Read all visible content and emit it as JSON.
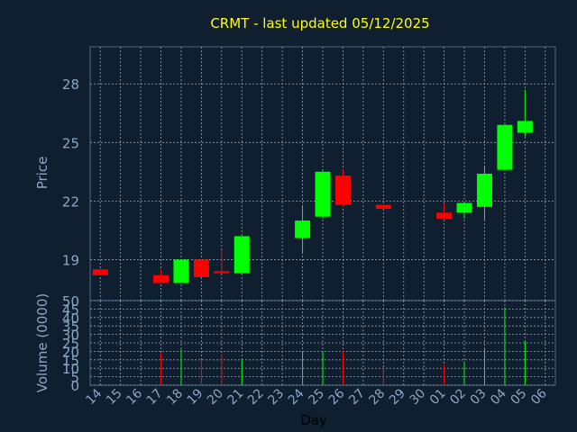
{
  "chart_data": {
    "type": "candlestick",
    "title": "CRMT - last updated 05/12/2025",
    "xlabel": "Day",
    "ylabel_price": "Price",
    "ylabel_volume": "Volume (0000)",
    "price_ticks": [
      "19",
      "22",
      "25",
      "28"
    ],
    "volume_ticks": [
      "0",
      "5",
      "10",
      "15",
      "20",
      "25",
      "30",
      "35",
      "40",
      "45",
      "50"
    ],
    "x_ticks": [
      "14",
      "15",
      "16",
      "17",
      "18",
      "19",
      "20",
      "21",
      "22",
      "23",
      "24",
      "25",
      "26",
      "27",
      "28",
      "29",
      "30",
      "01",
      "02",
      "03",
      "04",
      "05",
      "06"
    ],
    "price_range": [
      16.9,
      29.9
    ],
    "volume_range": [
      0,
      50
    ],
    "candles": [
      {
        "day": "14",
        "open": 18.5,
        "high": 18.5,
        "low": 18.2,
        "close": 18.2,
        "volume": 0
      },
      {
        "day": "17",
        "open": 18.2,
        "high": 18.5,
        "low": 17.8,
        "close": 17.8,
        "volume": 19
      },
      {
        "day": "18",
        "open": 17.8,
        "high": 19.0,
        "low": 17.8,
        "close": 19.0,
        "volume": 21
      },
      {
        "day": "19",
        "open": 19.0,
        "high": 19.0,
        "low": 18.1,
        "close": 18.1,
        "volume": 15
      },
      {
        "day": "20",
        "open": 18.4,
        "high": 19.5,
        "low": 18.3,
        "close": 18.3,
        "volume": 18
      },
      {
        "day": "21",
        "open": 18.3,
        "high": 20.2,
        "low": 18.3,
        "close": 20.2,
        "volume": 15
      },
      {
        "day": "24",
        "open": 20.1,
        "high": 21.8,
        "low": 19.3,
        "close": 21.0,
        "volume": 20
      },
      {
        "day": "25",
        "open": 21.2,
        "high": 23.6,
        "low": 21.1,
        "close": 23.5,
        "volume": 20
      },
      {
        "day": "26",
        "open": 23.3,
        "high": 23.6,
        "low": 21.7,
        "close": 21.8,
        "volume": 20
      },
      {
        "day": "28",
        "open": 21.8,
        "high": 21.8,
        "low": 21.6,
        "close": 21.6,
        "volume": 10
      },
      {
        "day": "01",
        "open": 21.4,
        "high": 21.9,
        "low": 21.1,
        "close": 21.1,
        "volume": 12
      },
      {
        "day": "02",
        "open": 21.4,
        "high": 21.9,
        "low": 21.1,
        "close": 21.9,
        "volume": 14
      },
      {
        "day": "03",
        "open": 21.7,
        "high": 23.8,
        "low": 21.0,
        "close": 23.4,
        "volume": 22
      },
      {
        "day": "04",
        "open": 23.6,
        "high": 25.9,
        "low": 23.6,
        "close": 25.9,
        "volume": 46
      },
      {
        "day": "05",
        "open": 25.5,
        "high": 27.7,
        "low": 25.3,
        "close": 26.1,
        "volume": 26
      }
    ]
  },
  "colors": {
    "background": "#0f1f30",
    "title": "#ffff00",
    "axis_text": "#8aa6c8",
    "frame": "#4a6a8a",
    "grid": "#8fa3b7",
    "up": "#00ff00",
    "down": "#ff0000",
    "day_label": "#000000"
  }
}
